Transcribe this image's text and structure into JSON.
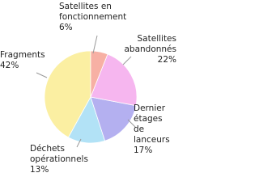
{
  "chart_data": {
    "type": "pie",
    "categories": [
      "Satellites en fonctionnement",
      "Satellites abandonnés",
      "Dernier étages de lanceurs",
      "Déchets opérationnels",
      "Fragments"
    ],
    "values": [
      6,
      22,
      17,
      13,
      42
    ],
    "value_labels": [
      "6%",
      "22%",
      "17%",
      "13%",
      "42%"
    ],
    "colors": [
      "#f7b0a4",
      "#f6b6ef",
      "#b4b0f0",
      "#b2e2f6",
      "#fbefa2"
    ]
  }
}
